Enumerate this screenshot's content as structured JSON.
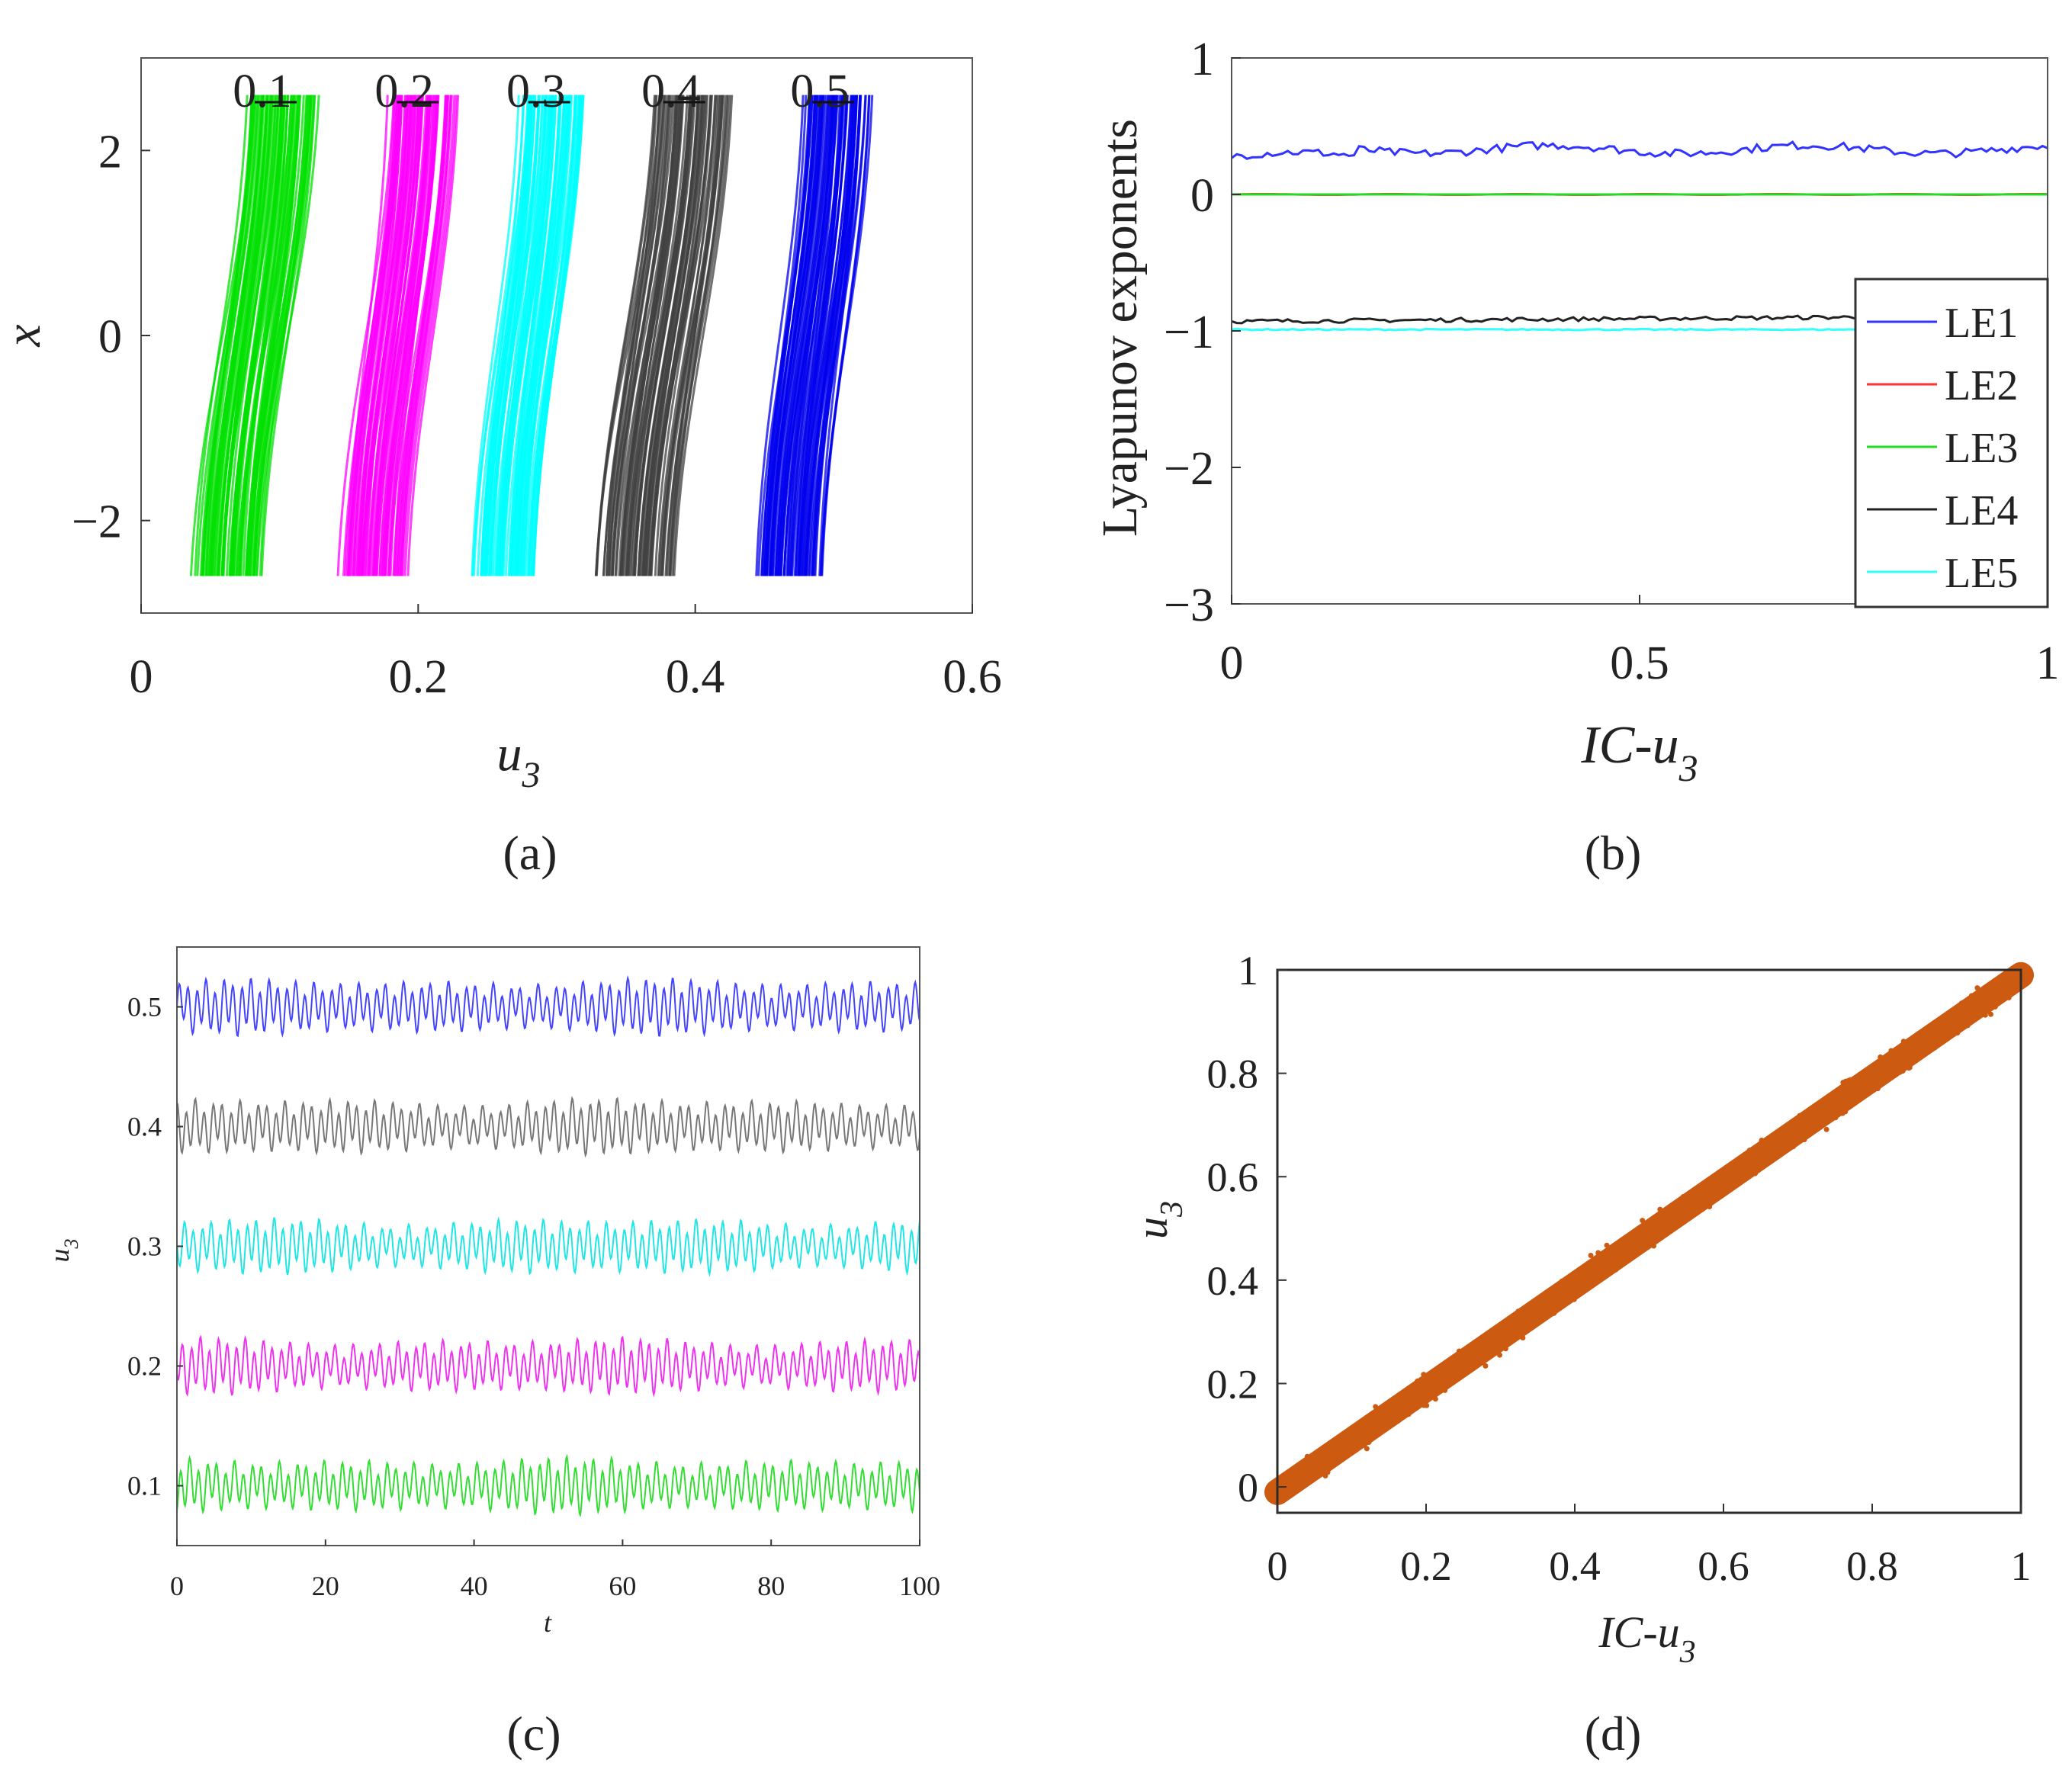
{
  "chart_data": [
    {
      "id": "a",
      "caption": "(a)",
      "type": "scatter",
      "xlabel": "u",
      "xlabel_sub": "3",
      "ylabel": "x",
      "xlim": [
        0,
        0.6
      ],
      "ylim": [
        -3,
        3
      ],
      "xticks": [
        "0",
        "0.2",
        "0.4",
        "0.6"
      ],
      "xtick_values": [
        0,
        0.2,
        0.4,
        0.6
      ],
      "yticks": [
        "−2",
        "0",
        "2"
      ],
      "ytick_values": [
        -2,
        0,
        2
      ],
      "series": [
        {
          "name": "0.1",
          "color": "#00e000",
          "u_min": 0.04,
          "u_max": 0.125,
          "x_range": [
            -2.6,
            2.6
          ]
        },
        {
          "name": "0.2",
          "color": "#ff00ff",
          "u_min": 0.145,
          "u_max": 0.225,
          "x_range": [
            -2.6,
            2.6
          ]
        },
        {
          "name": "0.3",
          "color": "#00ffff",
          "u_min": 0.24,
          "u_max": 0.32,
          "x_range": [
            -2.6,
            2.6
          ]
        },
        {
          "name": "0.4",
          "color": "#404040",
          "u_min": 0.33,
          "u_max": 0.425,
          "x_range": [
            -2.6,
            2.6
          ]
        },
        {
          "name": "0.5",
          "color": "#0000ee",
          "u_min": 0.445,
          "u_max": 0.525,
          "x_range": [
            -2.6,
            2.6
          ]
        }
      ]
    },
    {
      "id": "b",
      "caption": "(b)",
      "type": "line",
      "xlabel": "IC-u",
      "xlabel_sub": "3",
      "ylabel": "Lyapunov exponents",
      "xlim": [
        0,
        1
      ],
      "ylim": [
        -3,
        1
      ],
      "xticks": [
        "0",
        "0.5",
        "1"
      ],
      "xtick_values": [
        0,
        0.5,
        1
      ],
      "yticks": [
        "1",
        "0",
        "−1",
        "−2",
        "−3"
      ],
      "ytick_values": [
        1,
        0,
        -1,
        -2,
        -3
      ],
      "legend_position": "right",
      "series": [
        {
          "name": "LE1",
          "color": "#3333ff",
          "mean": 0.33
        },
        {
          "name": "LE2",
          "color": "#ff3333",
          "mean": 0.0
        },
        {
          "name": "LE3",
          "color": "#22dd22",
          "mean": 0.0
        },
        {
          "name": "LE4",
          "color": "#222222",
          "mean": -0.93
        },
        {
          "name": "LE5",
          "color": "#33ffff",
          "mean": -0.99
        }
      ]
    },
    {
      "id": "c",
      "caption": "(c)",
      "type": "line",
      "xlabel": "t",
      "ylabel": "u",
      "ylabel_sub": "3",
      "xlim": [
        0,
        100
      ],
      "ylim": [
        0.05,
        0.55
      ],
      "xticks": [
        "0",
        "20",
        "40",
        "60",
        "80",
        "100"
      ],
      "xtick_values": [
        0,
        20,
        40,
        60,
        80,
        100
      ],
      "yticks": [
        "0.5",
        "0.4",
        "0.3",
        "0.2",
        "0.1"
      ],
      "ytick_values": [
        0.5,
        0.4,
        0.3,
        0.2,
        0.1
      ],
      "series": [
        {
          "name": "u3=0.5",
          "color": "#4444ff",
          "center": 0.5,
          "amplitude": 0.025
        },
        {
          "name": "u3=0.4",
          "color": "#777777",
          "center": 0.4,
          "amplitude": 0.025
        },
        {
          "name": "u3=0.3",
          "color": "#22e5e5",
          "center": 0.3,
          "amplitude": 0.025
        },
        {
          "name": "u3=0.2",
          "color": "#ee33ee",
          "center": 0.2,
          "amplitude": 0.025
        },
        {
          "name": "u3=0.1",
          "color": "#33dd33",
          "center": 0.1,
          "amplitude": 0.025
        }
      ]
    },
    {
      "id": "d",
      "caption": "(d)",
      "type": "scatter",
      "xlabel": "IC-u",
      "xlabel_sub": "3",
      "ylabel": "u",
      "ylabel_sub": "3",
      "xlim": [
        0,
        1
      ],
      "ylim": [
        -0.05,
        1
      ],
      "xticks": [
        "0",
        "0.2",
        "0.4",
        "0.6",
        "0.8",
        "1"
      ],
      "xtick_values": [
        0,
        0.2,
        0.4,
        0.6,
        0.8,
        1
      ],
      "yticks": [
        "1",
        "0.8",
        "0.6",
        "0.4",
        "0.2",
        "0"
      ],
      "ytick_values": [
        1,
        0.8,
        0.6,
        0.4,
        0.2,
        0
      ],
      "series": [
        {
          "name": "u3 vs IC-u3",
          "color": "#cc5a10",
          "x": [
            0,
            1
          ],
          "y": [
            -0.01,
            0.99
          ]
        }
      ]
    }
  ]
}
